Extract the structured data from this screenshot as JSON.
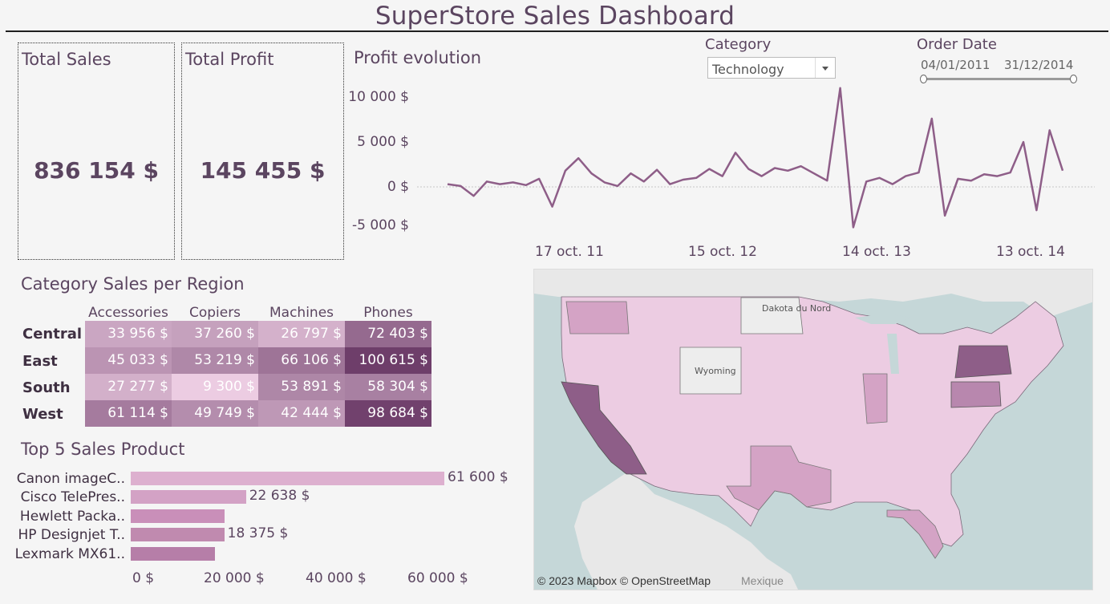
{
  "header": {
    "title": "SuperStore Sales Dashboard"
  },
  "kpis": {
    "sales_label": "Total Sales",
    "sales_value": "836 154 $",
    "profit_label": "Total Profit",
    "profit_value": "145 455 $"
  },
  "filters": {
    "category_label": "Category",
    "category_value": "Technology",
    "date_label": "Order Date",
    "date_start": "04/01/2011",
    "date_end": "31/12/2014",
    "date_range_fraction": [
      0,
      1
    ]
  },
  "profit_chart": {
    "title": "Profit evolution",
    "y_ticks": [
      "10 000 $",
      "5 000 $",
      "0 $",
      "-5 000 $"
    ],
    "x_ticks": [
      "17 oct. 11",
      "15 oct. 12",
      "14 oct. 13",
      "13 oct. 14"
    ],
    "color": "#8e5e88"
  },
  "heatmap": {
    "title": "Category Sales per Region",
    "columns": [
      "Accessories",
      "Copiers",
      "Machines",
      "Phones"
    ],
    "rows": [
      {
        "region": "Central",
        "cells": [
          "33 956 $",
          "37 260 $",
          "26 797 $",
          "72 403 $"
        ]
      },
      {
        "region": "East",
        "cells": [
          "45 033 $",
          "53 219 $",
          "66 106 $",
          "100 615 $"
        ]
      },
      {
        "region": "South",
        "cells": [
          "27 277 $",
          "9 300 $",
          "53 891 $",
          "58 304 $"
        ]
      },
      {
        "region": "West",
        "cells": [
          "61 114 $",
          "49 749 $",
          "42 444 $",
          "98 684 $"
        ]
      }
    ]
  },
  "top_products": {
    "title": "Top 5 Sales Product",
    "items": [
      {
        "label": "Canon imageC..",
        "value_label": "61 600 $"
      },
      {
        "label": "Cisco TelePres..",
        "value_label": "22 638 $"
      },
      {
        "label": "Hewlett Packa..",
        "value_label": ""
      },
      {
        "label": "HP Designjet T..",
        "value_label": "18 375 $"
      },
      {
        "label": "Lexmark MX61..",
        "value_label": ""
      }
    ],
    "x_ticks": [
      "0 $",
      "20 000 $",
      "40 000 $",
      "60 000 $"
    ]
  },
  "map": {
    "attribution": "© 2023 Mapbox © OpenStreetMap",
    "extra_label": "Mexique",
    "state_labels": [
      "Wyoming",
      "Dakota du Nord"
    ]
  },
  "chart_data": [
    {
      "type": "line",
      "title": "Profit evolution",
      "x_range": [
        "2011-01-04",
        "2014-12-31"
      ],
      "ylim": [
        -5500,
        12000
      ],
      "x": [
        "2011-01",
        "2011-02",
        "2011-03",
        "2011-04",
        "2011-05",
        "2011-06",
        "2011-07",
        "2011-08",
        "2011-09",
        "2011-10",
        "2011-11",
        "2011-12",
        "2012-01",
        "2012-02",
        "2012-03",
        "2012-04",
        "2012-05",
        "2012-06",
        "2012-07",
        "2012-08",
        "2012-09",
        "2012-10",
        "2012-11",
        "2012-12",
        "2013-01",
        "2013-02",
        "2013-03",
        "2013-04",
        "2013-05",
        "2013-06",
        "2013-07",
        "2013-08",
        "2013-09",
        "2013-10",
        "2013-11",
        "2013-12",
        "2014-01",
        "2014-02",
        "2014-03",
        "2014-04",
        "2014-05",
        "2014-06",
        "2014-07",
        "2014-08",
        "2014-09",
        "2014-10",
        "2014-11",
        "2014-12"
      ],
      "values": [
        300,
        100,
        -1000,
        600,
        300,
        500,
        200,
        900,
        -2200,
        1800,
        3200,
        1500,
        500,
        100,
        1500,
        600,
        1900,
        300,
        800,
        1000,
        2000,
        1200,
        3800,
        2000,
        1200,
        2100,
        1800,
        2300,
        1500,
        700,
        11000,
        -4500,
        600,
        1000,
        300,
        1200,
        1600,
        7600,
        -3200,
        900,
        700,
        1400,
        1200,
        1600,
        5000,
        -2600,
        6300,
        1800
      ],
      "series": [
        {
          "name": "",
          "color": "#8e5e88"
        }
      ]
    },
    {
      "type": "heatmap",
      "title": "Category Sales per Region",
      "columns": [
        "Accessories",
        "Copiers",
        "Machines",
        "Phones"
      ],
      "rows": [
        "Central",
        "East",
        "South",
        "West"
      ],
      "values": [
        [
          33956,
          37260,
          26797,
          72403
        ],
        [
          45033,
          53219,
          66106,
          100615
        ],
        [
          27277,
          9300,
          53891,
          58304
        ],
        [
          61114,
          49749,
          42444,
          98684
        ]
      ]
    },
    {
      "type": "bar",
      "title": "Top 5 Sales Product",
      "categories": [
        "Canon imageC..",
        "Cisco TelePres..",
        "Hewlett Packa..",
        "HP Designjet T..",
        "Lexmark MX61.."
      ],
      "values": [
        61600,
        22638,
        18500,
        18375,
        16500
      ],
      "xlim": [
        0,
        62000
      ]
    }
  ]
}
